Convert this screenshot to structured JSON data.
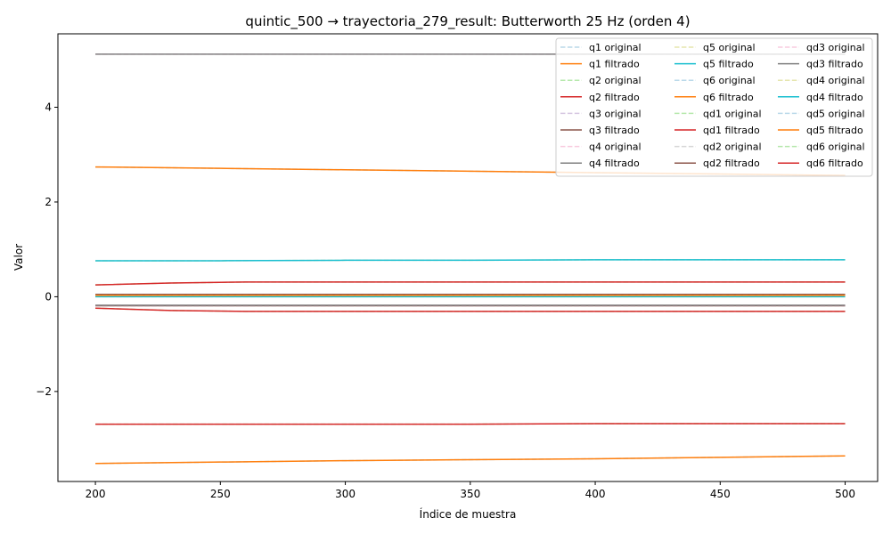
{
  "chart_data": {
    "type": "line",
    "title": "quintic_500 → trayectoria_279_result: Butterworth 25 Hz (orden 4)",
    "xlabel": "Índice de muestra",
    "ylabel": "Valor",
    "xlim": [
      185,
      513
    ],
    "ylim": [
      -3.9,
      5.55
    ],
    "xticks": [
      200,
      250,
      300,
      350,
      400,
      450,
      500
    ],
    "xtick_labels": [
      "200",
      "250",
      "300",
      "350",
      "400",
      "450",
      "500"
    ],
    "yticks": [
      -2,
      0,
      2,
      4
    ],
    "ytick_labels": [
      "−2",
      "0",
      "2",
      "4"
    ],
    "grid": false,
    "legend_position": "top-right",
    "legend_columns": 3,
    "series": [
      {
        "name": "q1 original",
        "style": "dashed",
        "color": "#9ecae1",
        "x": [
          200,
          250,
          300,
          350,
          400,
          450,
          500
        ],
        "y": [
          -3.52,
          -3.49,
          -3.46,
          -3.44,
          -3.42,
          -3.39,
          -3.36
        ]
      },
      {
        "name": "q1 filtrado",
        "style": "solid",
        "color": "#ff7f0e",
        "x": [
          200,
          250,
          300,
          350,
          400,
          450,
          500
        ],
        "y": [
          -3.52,
          -3.49,
          -3.46,
          -3.44,
          -3.42,
          -3.39,
          -3.36
        ]
      },
      {
        "name": "q2 original",
        "style": "dashed",
        "color": "#98df8a",
        "x": [
          200,
          230,
          260,
          300,
          350,
          400,
          450,
          500
        ],
        "y": [
          0.25,
          0.29,
          0.31,
          0.31,
          0.31,
          0.31,
          0.31,
          0.31
        ]
      },
      {
        "name": "q2 filtrado",
        "style": "solid",
        "color": "#d62728",
        "x": [
          200,
          230,
          260,
          300,
          350,
          400,
          450,
          500
        ],
        "y": [
          0.25,
          0.29,
          0.31,
          0.31,
          0.31,
          0.31,
          0.31,
          0.31
        ]
      },
      {
        "name": "q3 original",
        "style": "dashed",
        "color": "#c5b0d5",
        "x": [
          200,
          250,
          300,
          350,
          400,
          450,
          500
        ],
        "y": [
          -0.19,
          -0.19,
          -0.19,
          -0.19,
          -0.19,
          -0.19,
          -0.19
        ]
      },
      {
        "name": "q3 filtrado",
        "style": "solid",
        "color": "#8c564b",
        "x": [
          200,
          250,
          300,
          350,
          400,
          450,
          500
        ],
        "y": [
          -0.19,
          -0.19,
          -0.19,
          -0.19,
          -0.19,
          -0.19,
          -0.19
        ]
      },
      {
        "name": "q4 original",
        "style": "dashed",
        "color": "#f7b6d2",
        "x": [
          200,
          250,
          300,
          350,
          400,
          450,
          500
        ],
        "y": [
          5.12,
          5.12,
          5.12,
          5.12,
          5.12,
          5.12,
          5.12
        ]
      },
      {
        "name": "q4 filtrado",
        "style": "solid",
        "color": "#7f7f7f",
        "x": [
          200,
          250,
          300,
          350,
          400,
          450,
          500
        ],
        "y": [
          5.12,
          5.12,
          5.12,
          5.12,
          5.12,
          5.12,
          5.12
        ]
      },
      {
        "name": "q5 original",
        "style": "dashed",
        "color": "#dbdb8d",
        "x": [
          200,
          250,
          300,
          350,
          400,
          450,
          500
        ],
        "y": [
          0.76,
          0.76,
          0.77,
          0.77,
          0.78,
          0.78,
          0.78
        ]
      },
      {
        "name": "q5 filtrado",
        "style": "solid",
        "color": "#17becf",
        "x": [
          200,
          250,
          300,
          350,
          400,
          450,
          500
        ],
        "y": [
          0.76,
          0.76,
          0.77,
          0.77,
          0.78,
          0.78,
          0.78
        ]
      },
      {
        "name": "q6 original",
        "style": "dashed",
        "color": "#9ecae1",
        "x": [
          200,
          250,
          300,
          350,
          400,
          450,
          500
        ],
        "y": [
          2.74,
          2.71,
          2.68,
          2.65,
          2.62,
          2.59,
          2.56
        ]
      },
      {
        "name": "q6 filtrado",
        "style": "solid",
        "color": "#ff7f0e",
        "x": [
          200,
          250,
          300,
          350,
          400,
          450,
          500
        ],
        "y": [
          2.74,
          2.71,
          2.68,
          2.65,
          2.62,
          2.59,
          2.56
        ]
      },
      {
        "name": "qd1 original",
        "style": "dashed",
        "color": "#98df8a",
        "x": [
          200,
          230,
          260,
          300,
          350,
          400,
          450,
          500
        ],
        "y": [
          -0.24,
          -0.29,
          -0.31,
          -0.31,
          -0.31,
          -0.31,
          -0.31,
          -0.31
        ]
      },
      {
        "name": "qd1 filtrado",
        "style": "solid",
        "color": "#d62728",
        "x": [
          200,
          230,
          260,
          300,
          350,
          400,
          450,
          500
        ],
        "y": [
          -0.24,
          -0.29,
          -0.31,
          -0.31,
          -0.31,
          -0.31,
          -0.31,
          -0.31
        ]
      },
      {
        "name": "qd2 original",
        "style": "dashed",
        "color": "#c7c7c7",
        "x": [
          200,
          250,
          300,
          350,
          400,
          450,
          500
        ],
        "y": [
          0.05,
          0.05,
          0.05,
          0.05,
          0.05,
          0.05,
          0.05
        ]
      },
      {
        "name": "qd2 filtrado",
        "style": "solid",
        "color": "#8c564b",
        "x": [
          200,
          250,
          300,
          350,
          400,
          450,
          500
        ],
        "y": [
          0.05,
          0.05,
          0.05,
          0.05,
          0.05,
          0.05,
          0.05
        ]
      },
      {
        "name": "qd3 original",
        "style": "dashed",
        "color": "#f7b6d2",
        "x": [
          200,
          250,
          300,
          350,
          400,
          450,
          500
        ],
        "y": [
          -0.18,
          -0.18,
          -0.18,
          -0.18,
          -0.18,
          -0.18,
          -0.18
        ]
      },
      {
        "name": "qd3 filtrado",
        "style": "solid",
        "color": "#7f7f7f",
        "x": [
          200,
          250,
          300,
          350,
          400,
          450,
          500
        ],
        "y": [
          -0.18,
          -0.18,
          -0.18,
          -0.18,
          -0.18,
          -0.18,
          -0.18
        ]
      },
      {
        "name": "qd4 original",
        "style": "dashed",
        "color": "#dbdb8d",
        "x": [
          200,
          250,
          300,
          350,
          400,
          450,
          500
        ],
        "y": [
          0.0,
          0.0,
          0.0,
          0.0,
          0.0,
          0.0,
          0.0
        ]
      },
      {
        "name": "qd4 filtrado",
        "style": "solid",
        "color": "#17becf",
        "x": [
          200,
          250,
          300,
          350,
          400,
          450,
          500
        ],
        "y": [
          0.0,
          0.0,
          0.0,
          0.0,
          0.0,
          0.0,
          0.0
        ]
      },
      {
        "name": "qd5 original",
        "style": "dashed",
        "color": "#9ecae1",
        "x": [
          200,
          250,
          300,
          350,
          400,
          450,
          500
        ],
        "y": [
          0.03,
          0.03,
          0.03,
          0.03,
          0.03,
          0.03,
          0.03
        ]
      },
      {
        "name": "qd5 filtrado",
        "style": "solid",
        "color": "#ff7f0e",
        "x": [
          200,
          250,
          300,
          350,
          400,
          450,
          500
        ],
        "y": [
          0.03,
          0.03,
          0.03,
          0.03,
          0.03,
          0.03,
          0.03
        ]
      },
      {
        "name": "qd6 original",
        "style": "dashed",
        "color": "#98df8a",
        "x": [
          200,
          250,
          300,
          350,
          400,
          450,
          500
        ],
        "y": [
          -2.69,
          -2.69,
          -2.69,
          -2.69,
          -2.68,
          -2.68,
          -2.68
        ]
      },
      {
        "name": "qd6 filtrado",
        "style": "solid",
        "color": "#d62728",
        "x": [
          200,
          250,
          300,
          350,
          400,
          450,
          500
        ],
        "y": [
          -2.69,
          -2.69,
          -2.69,
          -2.69,
          -2.68,
          -2.68,
          -2.68
        ]
      }
    ]
  }
}
